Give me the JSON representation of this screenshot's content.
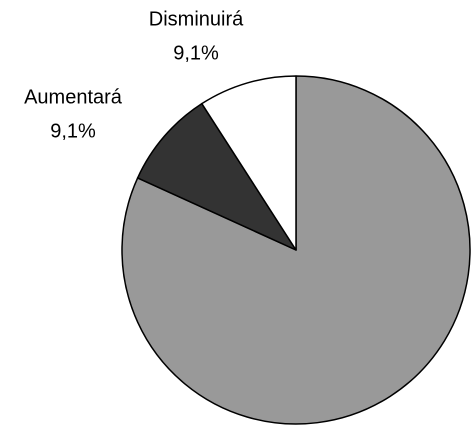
{
  "chart_data": {
    "type": "pie",
    "categories": [
      null,
      "Aumentará",
      "Disminuirá"
    ],
    "values": [
      81.8,
      9.1,
      9.1
    ],
    "value_labels": [
      null,
      "9,1%",
      "9,1%"
    ],
    "colors": [
      "#999999",
      "#333333",
      "#ffffff"
    ]
  }
}
